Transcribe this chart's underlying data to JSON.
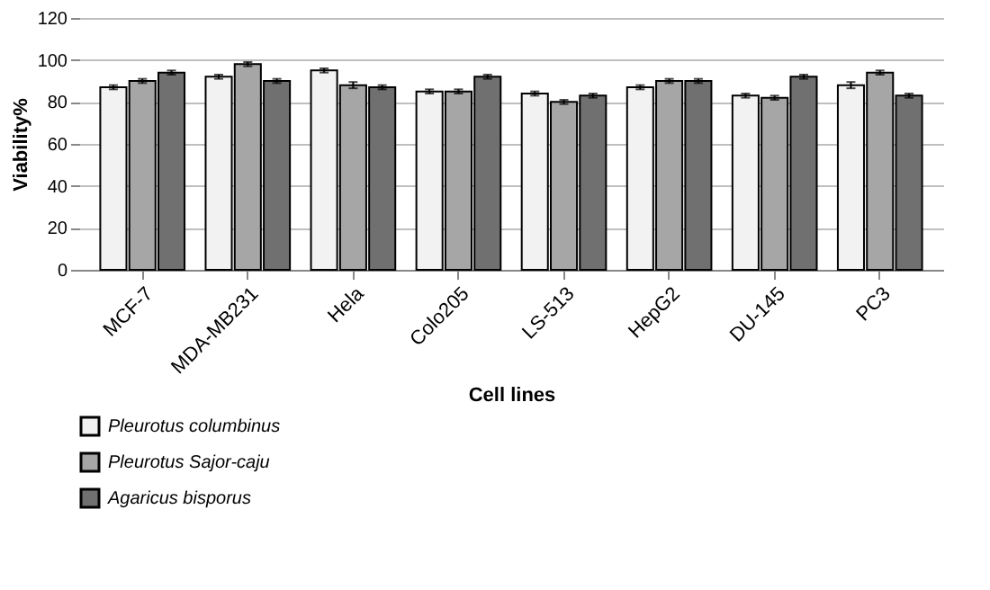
{
  "chart_data": {
    "type": "bar",
    "xlabel": "Cell lines",
    "ylabel": "Viability%",
    "categories": [
      "MCF-7",
      "MDA-MB231",
      "Hela",
      "Colo205",
      "LS-513",
      "HepG2",
      "DU-145",
      "PC3"
    ],
    "series": [
      {
        "name": "Pleurotus columbinus",
        "color": "#f2f2f2",
        "values": [
          87,
          92,
          95,
          85,
          84,
          87,
          83,
          88
        ],
        "errors": [
          1,
          1,
          1,
          1,
          1,
          1,
          1,
          1.5
        ]
      },
      {
        "name": "Pleurotus Sajor-caju",
        "color": "#a6a6a6",
        "values": [
          90,
          98,
          88,
          85,
          80,
          90,
          82,
          94
        ],
        "errors": [
          1,
          1,
          1.5,
          1,
          1,
          1,
          1,
          1
        ]
      },
      {
        "name": "Agaricus bisporus",
        "color": "#707070",
        "values": [
          94,
          90,
          87,
          92,
          83,
          90,
          92,
          83
        ],
        "errors": [
          1,
          1,
          1,
          1,
          1,
          1,
          1,
          1
        ]
      }
    ],
    "ylim": [
      0,
      120
    ],
    "yticks": [
      0,
      20,
      40,
      60,
      80,
      100,
      120
    ],
    "grid": "y",
    "legend": "bottom"
  }
}
